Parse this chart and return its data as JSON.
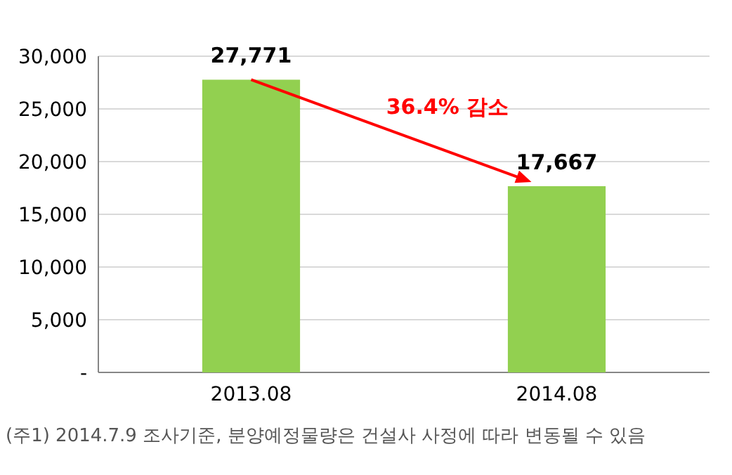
{
  "chart_data": {
    "type": "bar",
    "categories": [
      "2013.08",
      "2014.08"
    ],
    "values": [
      27771,
      17667
    ],
    "color": "#92d050",
    "ylim": [
      0,
      30000
    ],
    "yticks": [
      {
        "value": 0,
        "label": "-"
      },
      {
        "value": 5000,
        "label": "5,000"
      },
      {
        "value": 10000,
        "label": "10,000"
      },
      {
        "value": 15000,
        "label": "15,000"
      },
      {
        "value": 20000,
        "label": "20,000"
      },
      {
        "value": 25000,
        "label": "25,000"
      },
      {
        "value": 30000,
        "label": "30,000"
      }
    ],
    "grid": "y",
    "value_labels": [
      "27,771",
      "17,667"
    ],
    "annotations": [
      "36.4% 감소",
      "(주1) 2014.7.9 조사기준, 분양예정물량은 건설사 사정에 따라 변동될 수 있음"
    ]
  }
}
